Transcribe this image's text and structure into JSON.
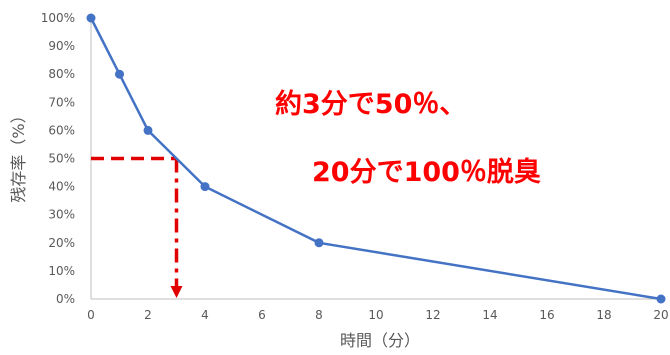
{
  "chart_data": {
    "type": "line",
    "x": [
      0,
      1,
      2,
      4,
      8,
      20
    ],
    "series": [
      {
        "values": [
          100,
          80,
          60,
          40,
          20,
          0
        ],
        "color": "#4472c4"
      }
    ],
    "xlim": [
      0,
      20
    ],
    "ylim": [
      0,
      100
    ],
    "x_ticks": [
      0,
      2,
      4,
      6,
      8,
      10,
      12,
      14,
      16,
      18,
      20
    ],
    "y_ticks": [
      0,
      10,
      20,
      30,
      40,
      50,
      60,
      70,
      80,
      90,
      100
    ],
    "x_tick_labels": [
      "0",
      "2",
      "4",
      "6",
      "8",
      "10",
      "12",
      "14",
      "16",
      "18",
      "20"
    ],
    "y_tick_labels": [
      "0%",
      "10%",
      "20%",
      "30%",
      "40%",
      "50%",
      "60%",
      "70%",
      "80%",
      "90%",
      "100%"
    ],
    "xlabel": "時間（分）",
    "ylabel": "残存率（%）",
    "grid": false,
    "reference_lines": {
      "color": "#e00000",
      "horizontal_y": 50,
      "horizontal_x_range": [
        0,
        3
      ],
      "vertical_x": 3,
      "vertical_y_range": [
        50,
        0
      ]
    },
    "annotations": [
      {
        "text": "約3分で50％、",
        "color": "#ff0000"
      },
      {
        "text": "20分で100％脱臭",
        "color": "#ff0000"
      }
    ]
  }
}
